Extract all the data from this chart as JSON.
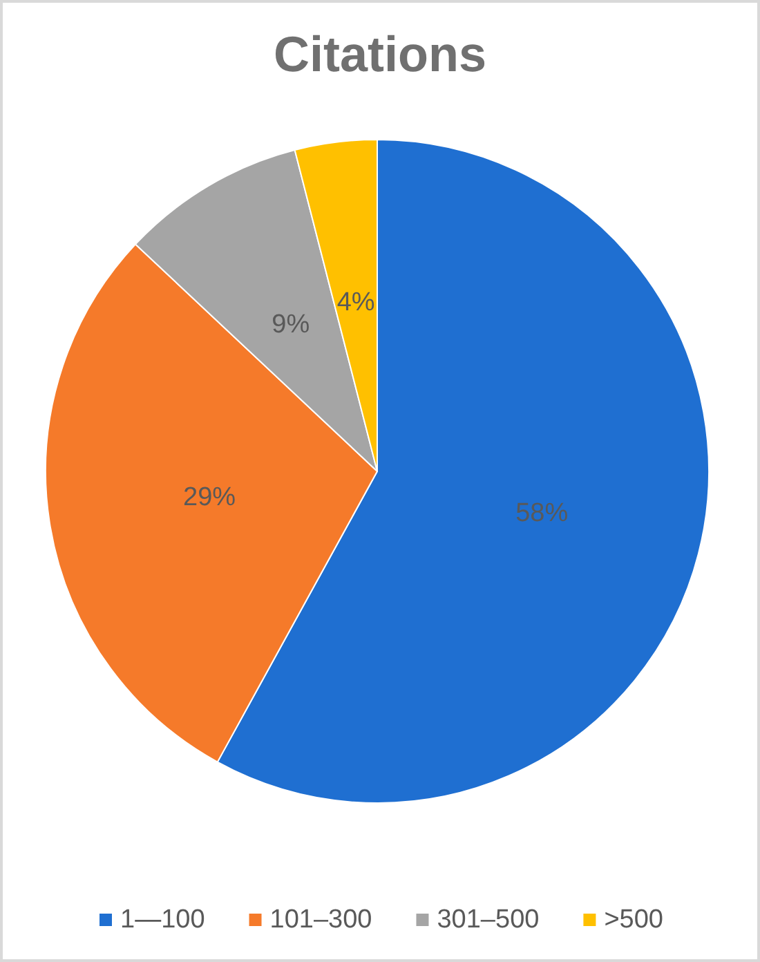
{
  "chart_data": {
    "type": "pie",
    "title": "Citations",
    "categories": [
      "1—100",
      "101–300",
      "301–500",
      ">500"
    ],
    "values": [
      58,
      29,
      9,
      4
    ],
    "colors": [
      "#1f6fd1",
      "#f57a2a",
      "#a5a5a5",
      "#ffc000"
    ],
    "value_labels": [
      "58%",
      "29%",
      "9%",
      "4%"
    ],
    "legend": "bottom"
  }
}
